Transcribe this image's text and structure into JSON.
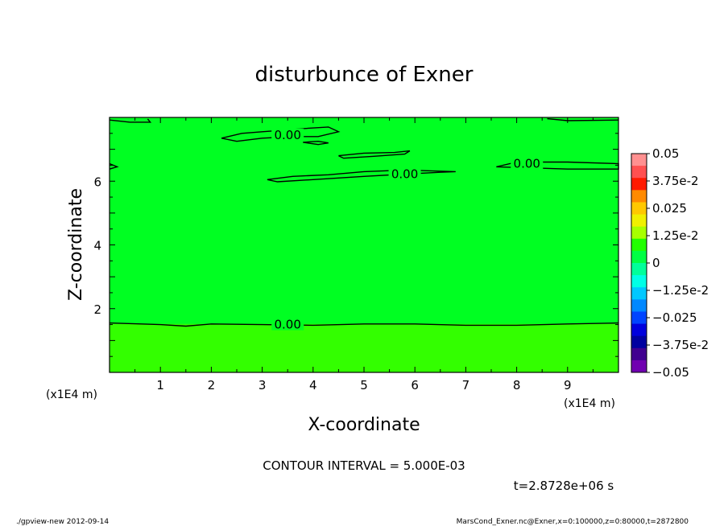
{
  "chart_data": {
    "type": "heatmap",
    "title": "disturbunce of Exner",
    "xlabel": "X-coordinate",
    "ylabel": "Z-coordinate",
    "x_unit": "(x1E4 m)",
    "xlim": [
      0,
      10
    ],
    "ylim": [
      0,
      8
    ],
    "x_ticks": [
      "1",
      "2",
      "3",
      "4",
      "5",
      "6",
      "7",
      "8",
      "9"
    ],
    "y_ticks": [
      "2",
      "4",
      "6"
    ],
    "y_tick_values": [
      2,
      4,
      6
    ],
    "x_tick_values": [
      1,
      2,
      3,
      4,
      5,
      6,
      7,
      8,
      9
    ],
    "colorbar": {
      "labels": [
        "0.05",
        "3.75e-2",
        "0.025",
        "1.25e-2",
        "0",
        "−1.25e-2",
        "−0.025",
        "−3.75e-2",
        "−0.05"
      ],
      "colors": [
        "#ff9090",
        "#ff5050",
        "#ff1a00",
        "#ff8a00",
        "#ffc800",
        "#f0f000",
        "#a8ff00",
        "#22ff00",
        "#00ff44",
        "#00ff9a",
        "#00ffe6",
        "#00c8ff",
        "#0088ff",
        "#0044ff",
        "#0000dd",
        "#0000a0",
        "#400090",
        "#7000b0"
      ],
      "min": -0.05,
      "max": 0.05
    },
    "field_color_main": "#00ff22",
    "field_color_low": "#33ff00",
    "contour_label": "0.00",
    "contours": [
      {
        "points": [
          [
            0,
            1.55
          ],
          [
            1,
            1.5
          ],
          [
            1.5,
            1.45
          ],
          [
            2,
            1.52
          ],
          [
            3,
            1.5
          ],
          [
            4,
            1.48
          ],
          [
            5,
            1.52
          ],
          [
            6,
            1.52
          ],
          [
            7,
            1.48
          ],
          [
            8,
            1.48
          ],
          [
            9,
            1.52
          ],
          [
            10,
            1.55
          ]
        ],
        "label_at": [
          3.5,
          1.5
        ]
      },
      {
        "points": [
          [
            2.2,
            7.35
          ],
          [
            2.6,
            7.5
          ],
          [
            3.0,
            7.55
          ],
          [
            3.4,
            7.6
          ],
          [
            3.8,
            7.65
          ],
          [
            4.3,
            7.7
          ],
          [
            4.5,
            7.55
          ],
          [
            4.1,
            7.4
          ],
          [
            3.6,
            7.4
          ],
          [
            3.0,
            7.35
          ],
          [
            2.5,
            7.25
          ],
          [
            2.2,
            7.35
          ]
        ],
        "label_at": [
          3.5,
          7.45
        ]
      },
      {
        "points": [
          [
            3.8,
            7.22
          ],
          [
            4.1,
            7.25
          ],
          [
            4.3,
            7.2
          ],
          [
            4.1,
            7.15
          ],
          [
            3.8,
            7.22
          ]
        ],
        "label_at": null
      },
      {
        "points": [
          [
            4.5,
            6.8
          ],
          [
            5.0,
            6.88
          ],
          [
            5.6,
            6.9
          ],
          [
            5.9,
            6.95
          ],
          [
            5.8,
            6.85
          ],
          [
            5.2,
            6.78
          ],
          [
            4.6,
            6.72
          ],
          [
            4.5,
            6.8
          ]
        ],
        "label_at": null
      },
      {
        "points": [
          [
            3.1,
            6.05
          ],
          [
            3.6,
            6.15
          ],
          [
            4.3,
            6.2
          ],
          [
            5.0,
            6.3
          ],
          [
            5.8,
            6.35
          ],
          [
            6.8,
            6.3
          ],
          [
            6.5,
            6.28
          ],
          [
            5.8,
            6.22
          ],
          [
            5.0,
            6.15
          ],
          [
            4.0,
            6.05
          ],
          [
            3.3,
            5.98
          ],
          [
            3.1,
            6.05
          ]
        ],
        "label_at": [
          5.8,
          6.22
        ]
      },
      {
        "points": [
          [
            7.6,
            6.45
          ],
          [
            8.0,
            6.6
          ],
          [
            9.0,
            6.6
          ],
          [
            10,
            6.55
          ],
          [
            10,
            6.38
          ],
          [
            9.0,
            6.38
          ],
          [
            8.2,
            6.42
          ],
          [
            7.6,
            6.45
          ]
        ],
        "label_at": [
          8.2,
          6.55
        ]
      },
      {
        "points": [
          [
            0,
            7.92
          ],
          [
            0.4,
            7.85
          ],
          [
            0.8,
            7.85
          ],
          [
            0.75,
            7.95
          ]
        ],
        "label_at": null
      },
      {
        "points": [
          [
            8.6,
            7.96
          ],
          [
            9.0,
            7.9
          ],
          [
            10,
            7.92
          ]
        ],
        "label_at": null
      },
      {
        "points": [
          [
            0,
            6.55
          ],
          [
            0.15,
            6.45
          ],
          [
            0,
            6.38
          ]
        ],
        "label_at": null
      }
    ]
  },
  "notes": {
    "contour_interval": "CONTOUR INTERVAL = 5.000E-03",
    "time": "t=2.8728e+06 s",
    "footer_left": "./gpview-new  2012-09-14",
    "footer_right": "MarsCond_Exner.nc@Exner,x=0:100000,z=0:80000,t=2872800"
  }
}
